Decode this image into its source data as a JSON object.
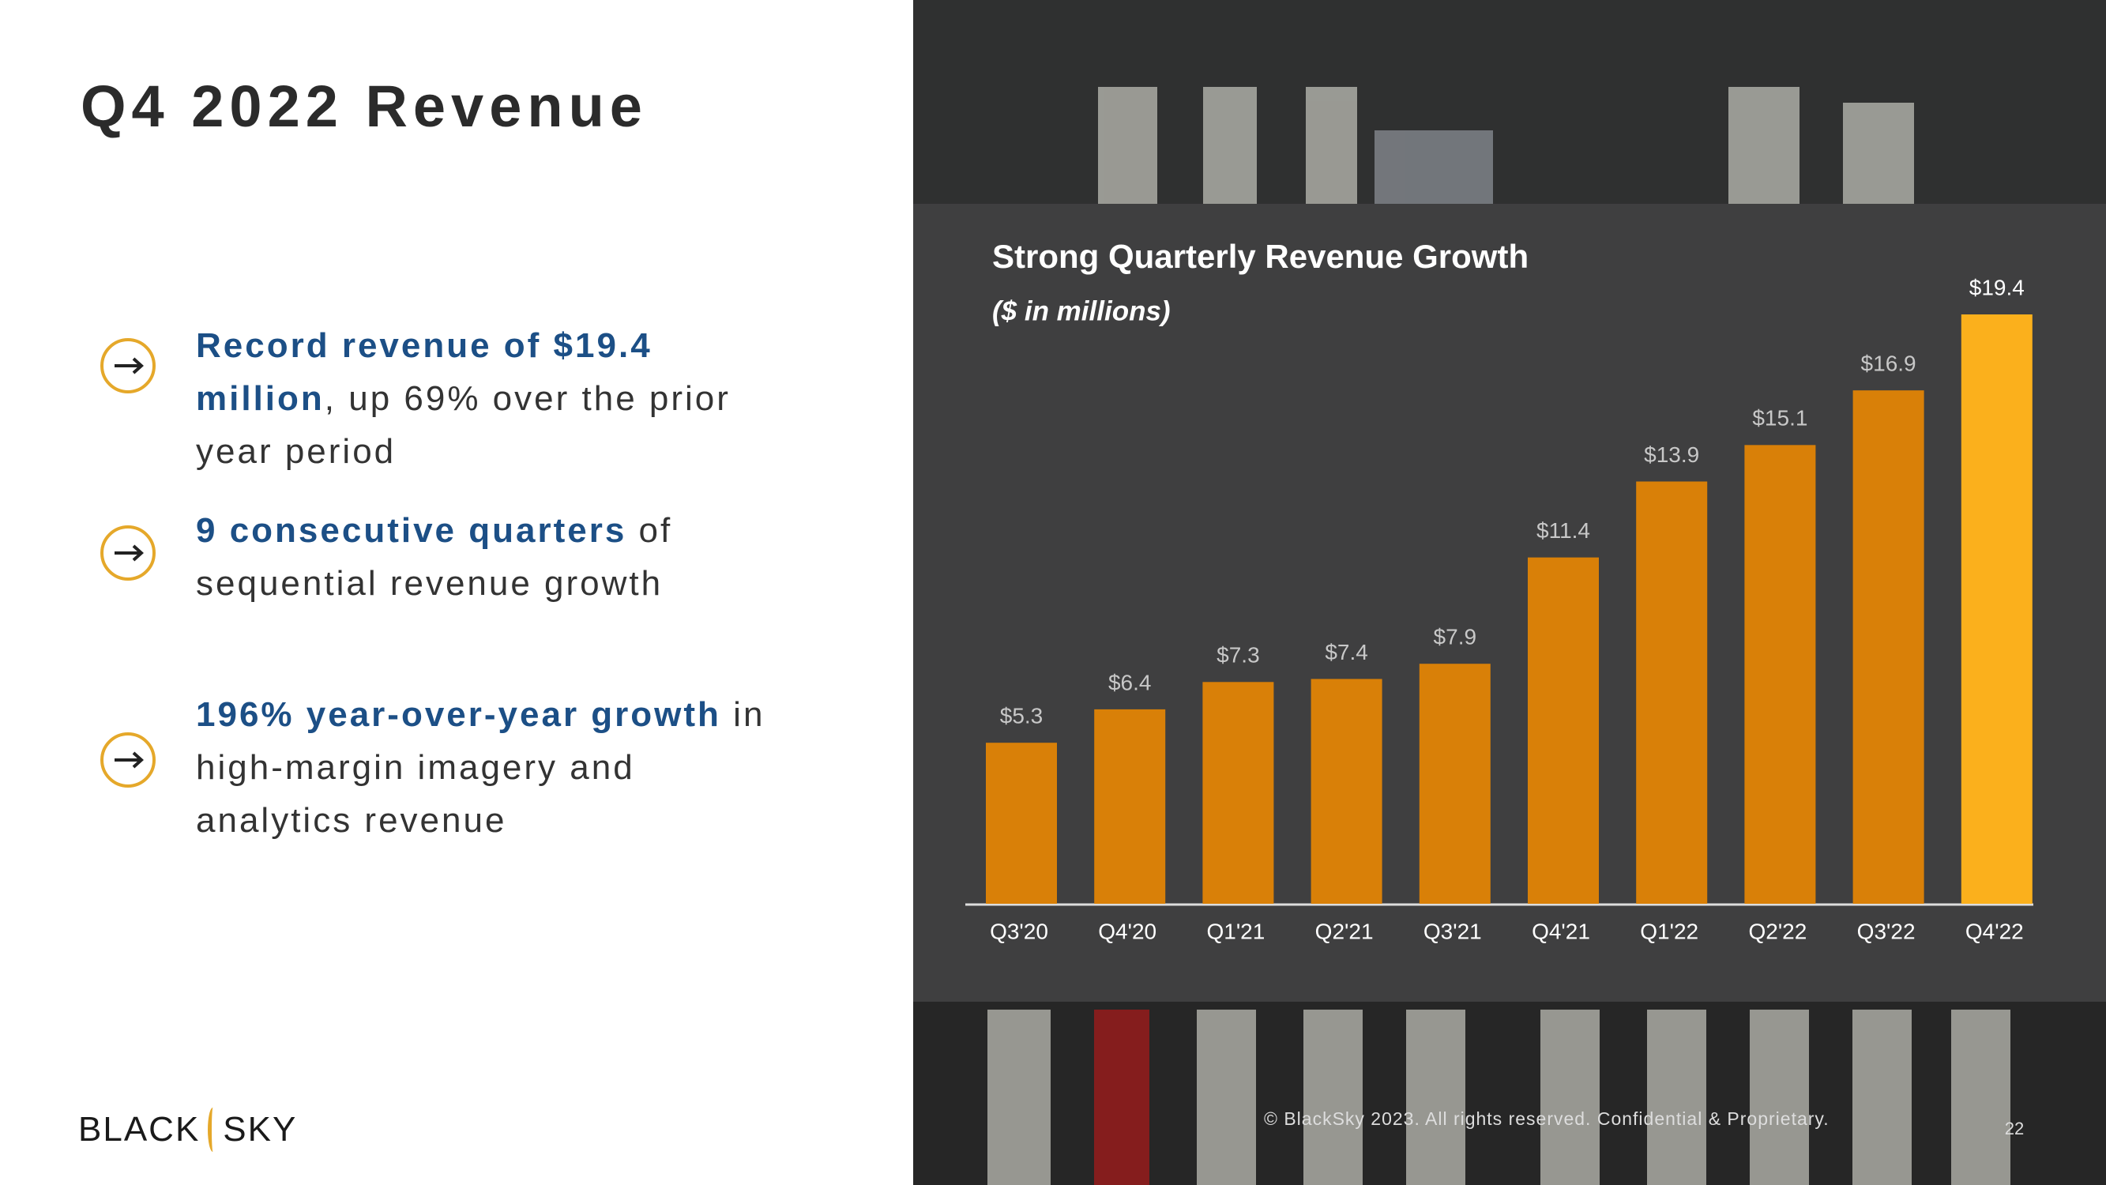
{
  "header": {
    "title": "Q4 2022 Revenue"
  },
  "bullets": [
    {
      "bold": "Record revenue of $19.4 million",
      "text": ", up 69% over the prior year period"
    },
    {
      "bold": "9 consecutive quarters",
      "text": " of sequential revenue growth"
    },
    {
      "bold": "196% year-over-year growth",
      "text": " in high-margin imagery and analytics revenue"
    }
  ],
  "chart_data": {
    "type": "bar",
    "title": "Strong Quarterly Revenue Growth",
    "subtitle": "($ in millions)",
    "categories": [
      "Q3'20",
      "Q4'20",
      "Q1'21",
      "Q2'21",
      "Q3'21",
      "Q4'21",
      "Q1'22",
      "Q2'22",
      "Q3'22",
      "Q4'22"
    ],
    "values": [
      5.3,
      6.4,
      7.3,
      7.4,
      7.9,
      11.4,
      13.9,
      15.1,
      16.9,
      19.4
    ],
    "value_labels": [
      "$5.3",
      "$6.4",
      "$7.3",
      "$7.4",
      "$7.9",
      "$11.4",
      "$13.9",
      "$15.1",
      "$16.9",
      "$19.4"
    ],
    "colors": [
      "#d98008",
      "#d98008",
      "#d98008",
      "#d98008",
      "#d98008",
      "#d98008",
      "#d98008",
      "#d98008",
      "#d98008",
      "#fbb01c"
    ]
  },
  "footer": {
    "logo_left": "BLACK",
    "logo_right": "SKY",
    "copyright": "© BlackSky 2023. All rights reserved. Confidential & Proprietary.",
    "page": "22"
  }
}
